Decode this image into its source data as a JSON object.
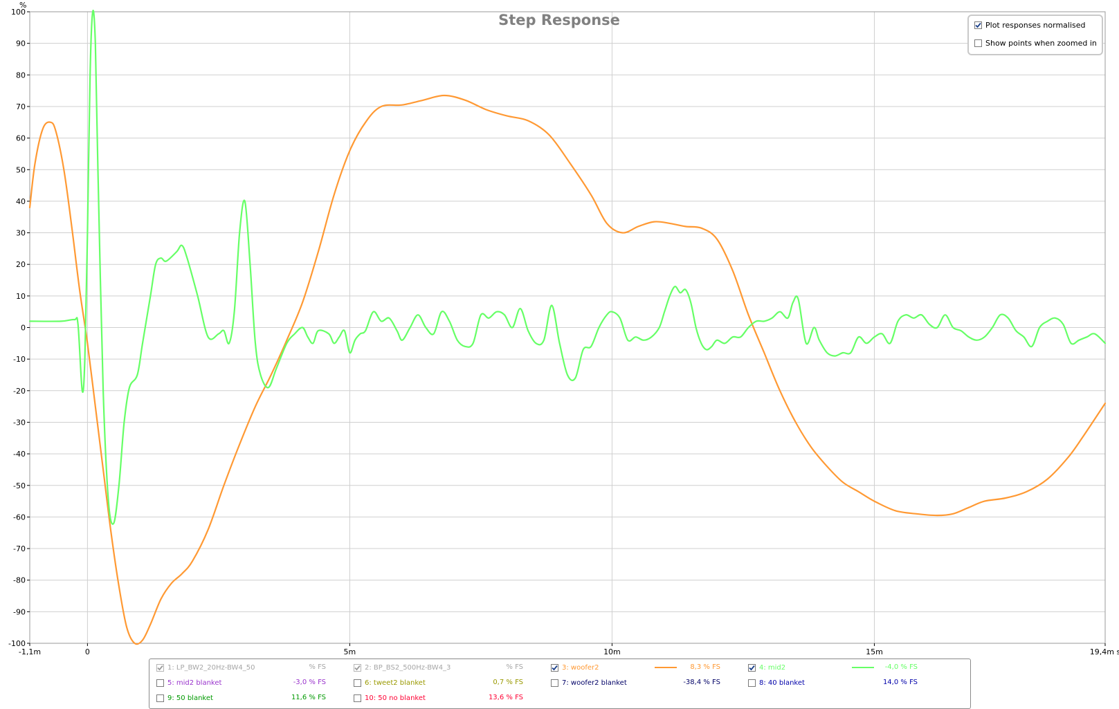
{
  "chart_data": {
    "type": "line",
    "title": "Step Response",
    "y_unit_label": "%",
    "x_unit_label": "s",
    "xlim": [
      -1.1,
      19.4
    ],
    "ylim": [
      -100,
      100
    ],
    "y_ticks": [
      100,
      90,
      80,
      70,
      60,
      50,
      40,
      30,
      20,
      10,
      0,
      -10,
      -20,
      -30,
      -40,
      -50,
      -60,
      -70,
      -80,
      -90,
      -100
    ],
    "y_tick_labels": [
      "100",
      "90",
      "80",
      "70",
      "60",
      "50",
      "40",
      "30",
      "20",
      "10",
      "0",
      "-10",
      "-20",
      "-30",
      "-40",
      "-50",
      "-60",
      "-70",
      "-80",
      "-90",
      "-100"
    ],
    "x_ticks": [
      -1.1,
      0,
      5,
      10,
      15,
      19.4
    ],
    "x_tick_labels": [
      "-1,1m",
      "0",
      "5m",
      "10m",
      "15m",
      "19,4m s"
    ],
    "grid": true,
    "series": [
      {
        "name": "3: woofer2",
        "color": "#ff9933",
        "points": [
          [
            -1.1,
            38
          ],
          [
            -1.0,
            52
          ],
          [
            -0.85,
            63
          ],
          [
            -0.7,
            65
          ],
          [
            -0.6,
            62
          ],
          [
            -0.45,
            50
          ],
          [
            -0.3,
            32
          ],
          [
            -0.15,
            12
          ],
          [
            0,
            -5
          ],
          [
            0.15,
            -25
          ],
          [
            0.3,
            -45
          ],
          [
            0.45,
            -65
          ],
          [
            0.6,
            -82
          ],
          [
            0.75,
            -95
          ],
          [
            0.9,
            -100
          ],
          [
            1.05,
            -99
          ],
          [
            1.2,
            -94
          ],
          [
            1.4,
            -86
          ],
          [
            1.6,
            -81
          ],
          [
            1.8,
            -78
          ],
          [
            2.0,
            -74
          ],
          [
            2.3,
            -64
          ],
          [
            2.6,
            -50
          ],
          [
            2.9,
            -37
          ],
          [
            3.2,
            -25
          ],
          [
            3.5,
            -15
          ],
          [
            3.8,
            -4
          ],
          [
            4.1,
            8
          ],
          [
            4.4,
            24
          ],
          [
            4.7,
            42
          ],
          [
            5.0,
            56
          ],
          [
            5.3,
            65
          ],
          [
            5.6,
            70
          ],
          [
            6.0,
            70.5
          ],
          [
            6.4,
            72
          ],
          [
            6.8,
            73.5
          ],
          [
            7.2,
            72
          ],
          [
            7.6,
            69
          ],
          [
            8.0,
            67
          ],
          [
            8.4,
            65.5
          ],
          [
            8.8,
            61
          ],
          [
            9.2,
            52
          ],
          [
            9.6,
            42
          ],
          [
            9.9,
            33
          ],
          [
            10.2,
            30
          ],
          [
            10.5,
            32
          ],
          [
            10.8,
            33.5
          ],
          [
            11.1,
            33
          ],
          [
            11.4,
            32
          ],
          [
            11.7,
            31.5
          ],
          [
            12.0,
            28
          ],
          [
            12.3,
            18
          ],
          [
            12.6,
            4
          ],
          [
            12.9,
            -8
          ],
          [
            13.2,
            -20
          ],
          [
            13.5,
            -30
          ],
          [
            13.8,
            -38
          ],
          [
            14.1,
            -44
          ],
          [
            14.4,
            -49
          ],
          [
            14.7,
            -52
          ],
          [
            15.0,
            -55
          ],
          [
            15.4,
            -58
          ],
          [
            15.8,
            -59
          ],
          [
            16.2,
            -59.5
          ],
          [
            16.5,
            -59
          ],
          [
            16.8,
            -57
          ],
          [
            17.1,
            -55
          ],
          [
            17.5,
            -54
          ],
          [
            17.9,
            -52
          ],
          [
            18.3,
            -48
          ],
          [
            18.7,
            -41
          ],
          [
            19.0,
            -34
          ],
          [
            19.4,
            -24
          ]
        ]
      },
      {
        "name": "4: mid2",
        "color": "#66ff66",
        "points": [
          [
            -1.1,
            2
          ],
          [
            -0.5,
            2
          ],
          [
            -0.25,
            2.5
          ],
          [
            -0.18,
            1
          ],
          [
            -0.1,
            -20
          ],
          [
            -0.05,
            -10
          ],
          [
            0.0,
            30
          ],
          [
            0.05,
            80
          ],
          [
            0.1,
            100
          ],
          [
            0.15,
            90
          ],
          [
            0.2,
            50
          ],
          [
            0.3,
            -20
          ],
          [
            0.4,
            -55
          ],
          [
            0.5,
            -62
          ],
          [
            0.6,
            -50
          ],
          [
            0.7,
            -30
          ],
          [
            0.8,
            -19
          ],
          [
            0.95,
            -15
          ],
          [
            1.05,
            -5
          ],
          [
            1.2,
            10
          ],
          [
            1.3,
            20
          ],
          [
            1.4,
            22
          ],
          [
            1.5,
            21
          ],
          [
            1.7,
            24
          ],
          [
            1.8,
            26
          ],
          [
            1.9,
            22
          ],
          [
            2.1,
            10
          ],
          [
            2.3,
            -3
          ],
          [
            2.5,
            -2
          ],
          [
            2.6,
            -1
          ],
          [
            2.7,
            -5
          ],
          [
            2.8,
            5
          ],
          [
            2.9,
            30
          ],
          [
            3.0,
            40
          ],
          [
            3.1,
            20
          ],
          [
            3.2,
            -5
          ],
          [
            3.3,
            -15
          ],
          [
            3.45,
            -19
          ],
          [
            3.6,
            -13
          ],
          [
            3.8,
            -5
          ],
          [
            3.95,
            -2
          ],
          [
            4.1,
            0
          ],
          [
            4.2,
            -3
          ],
          [
            4.3,
            -5
          ],
          [
            4.4,
            -1
          ],
          [
            4.6,
            -2
          ],
          [
            4.7,
            -5
          ],
          [
            4.8,
            -3
          ],
          [
            4.9,
            -1
          ],
          [
            5.0,
            -8
          ],
          [
            5.1,
            -4
          ],
          [
            5.2,
            -2
          ],
          [
            5.3,
            -1
          ],
          [
            5.45,
            5
          ],
          [
            5.6,
            2
          ],
          [
            5.75,
            3
          ],
          [
            5.9,
            -1
          ],
          [
            6.0,
            -4
          ],
          [
            6.15,
            0
          ],
          [
            6.3,
            4
          ],
          [
            6.45,
            0
          ],
          [
            6.6,
            -2
          ],
          [
            6.75,
            5
          ],
          [
            6.9,
            2
          ],
          [
            7.05,
            -4
          ],
          [
            7.2,
            -6
          ],
          [
            7.35,
            -5
          ],
          [
            7.5,
            4
          ],
          [
            7.65,
            3
          ],
          [
            7.8,
            5
          ],
          [
            7.95,
            4
          ],
          [
            8.1,
            0
          ],
          [
            8.25,
            6
          ],
          [
            8.4,
            -1
          ],
          [
            8.55,
            -5
          ],
          [
            8.7,
            -4
          ],
          [
            8.85,
            7
          ],
          [
            9.0,
            -5
          ],
          [
            9.15,
            -15
          ],
          [
            9.3,
            -16
          ],
          [
            9.45,
            -7
          ],
          [
            9.6,
            -6
          ],
          [
            9.75,
            0
          ],
          [
            9.9,
            4
          ],
          [
            10.0,
            5
          ],
          [
            10.15,
            3
          ],
          [
            10.3,
            -4
          ],
          [
            10.45,
            -3
          ],
          [
            10.6,
            -4
          ],
          [
            10.75,
            -3
          ],
          [
            10.9,
            0
          ],
          [
            11.0,
            5
          ],
          [
            11.1,
            10
          ],
          [
            11.2,
            13
          ],
          [
            11.3,
            11
          ],
          [
            11.4,
            12
          ],
          [
            11.5,
            8
          ],
          [
            11.6,
            0
          ],
          [
            11.7,
            -5
          ],
          [
            11.8,
            -7
          ],
          [
            11.9,
            -6
          ],
          [
            12.0,
            -4
          ],
          [
            12.15,
            -5
          ],
          [
            12.3,
            -3
          ],
          [
            12.45,
            -3
          ],
          [
            12.6,
            0
          ],
          [
            12.75,
            2
          ],
          [
            12.9,
            2
          ],
          [
            13.05,
            3
          ],
          [
            13.2,
            5
          ],
          [
            13.35,
            3
          ],
          [
            13.45,
            8
          ],
          [
            13.55,
            9
          ],
          [
            13.7,
            -5
          ],
          [
            13.85,
            0
          ],
          [
            13.95,
            -4
          ],
          [
            14.1,
            -8
          ],
          [
            14.25,
            -9
          ],
          [
            14.4,
            -8
          ],
          [
            14.55,
            -8
          ],
          [
            14.7,
            -3
          ],
          [
            14.85,
            -5
          ],
          [
            15.0,
            -3
          ],
          [
            15.15,
            -2
          ],
          [
            15.3,
            -5
          ],
          [
            15.45,
            2
          ],
          [
            15.6,
            4
          ],
          [
            15.75,
            3
          ],
          [
            15.9,
            4
          ],
          [
            16.05,
            1
          ],
          [
            16.2,
            0
          ],
          [
            16.35,
            4
          ],
          [
            16.5,
            0
          ],
          [
            16.65,
            -1
          ],
          [
            16.8,
            -3
          ],
          [
            16.95,
            -4
          ],
          [
            17.1,
            -3
          ],
          [
            17.25,
            0
          ],
          [
            17.4,
            4
          ],
          [
            17.55,
            3
          ],
          [
            17.7,
            -1
          ],
          [
            17.85,
            -3
          ],
          [
            18.0,
            -6
          ],
          [
            18.15,
            0
          ],
          [
            18.3,
            2
          ],
          [
            18.45,
            3
          ],
          [
            18.6,
            1
          ],
          [
            18.75,
            -5
          ],
          [
            18.9,
            -4
          ],
          [
            19.05,
            -3
          ],
          [
            19.2,
            -2
          ],
          [
            19.4,
            -5
          ]
        ]
      }
    ]
  },
  "options": {
    "plot_normalised_label": "Plot responses normalised",
    "plot_normalised_checked": true,
    "show_points_label": "Show points when zoomed in",
    "show_points_checked": false
  },
  "legend": {
    "items": [
      {
        "label": "1: LP_BW2_20Hz-BW4_50",
        "value": "% FS",
        "color": "#a6a6a6",
        "checked": true,
        "disabled": true,
        "line": false
      },
      {
        "label": "2: BP_BS2_500Hz-BW4_3",
        "value": "% FS",
        "color": "#a6a6a6",
        "checked": true,
        "disabled": true,
        "line": false
      },
      {
        "label": "3: woofer2",
        "value": "8,3 % FS",
        "color": "#ff9933",
        "checked": true,
        "disabled": false,
        "line": true
      },
      {
        "label": "4: mid2",
        "value": "-4,0 % FS",
        "color": "#66ff66",
        "checked": true,
        "disabled": false,
        "line": true
      },
      {
        "label": "5: mid2 blanket",
        "value": "-3,0 % FS",
        "color": "#9933cc",
        "checked": false,
        "disabled": false,
        "line": false
      },
      {
        "label": "6: tweet2 blanket",
        "value": "0,7 % FS",
        "color": "#999900",
        "checked": false,
        "disabled": false,
        "line": false
      },
      {
        "label": "7: woofer2 blanket",
        "value": "-38,4 % FS",
        "color": "#000066",
        "checked": false,
        "disabled": false,
        "line": false
      },
      {
        "label": "8: 40 blanket",
        "value": "14,0 % FS",
        "color": "#0000aa",
        "checked": false,
        "disabled": false,
        "line": false
      },
      {
        "label": "9: 50 blanket",
        "value": "11,6 % FS",
        "color": "#009900",
        "checked": false,
        "disabled": false,
        "line": false
      },
      {
        "label": "10: 50 no blanket",
        "value": "13,6 % FS",
        "color": "#ff0033",
        "checked": false,
        "disabled": false,
        "line": false
      }
    ]
  }
}
